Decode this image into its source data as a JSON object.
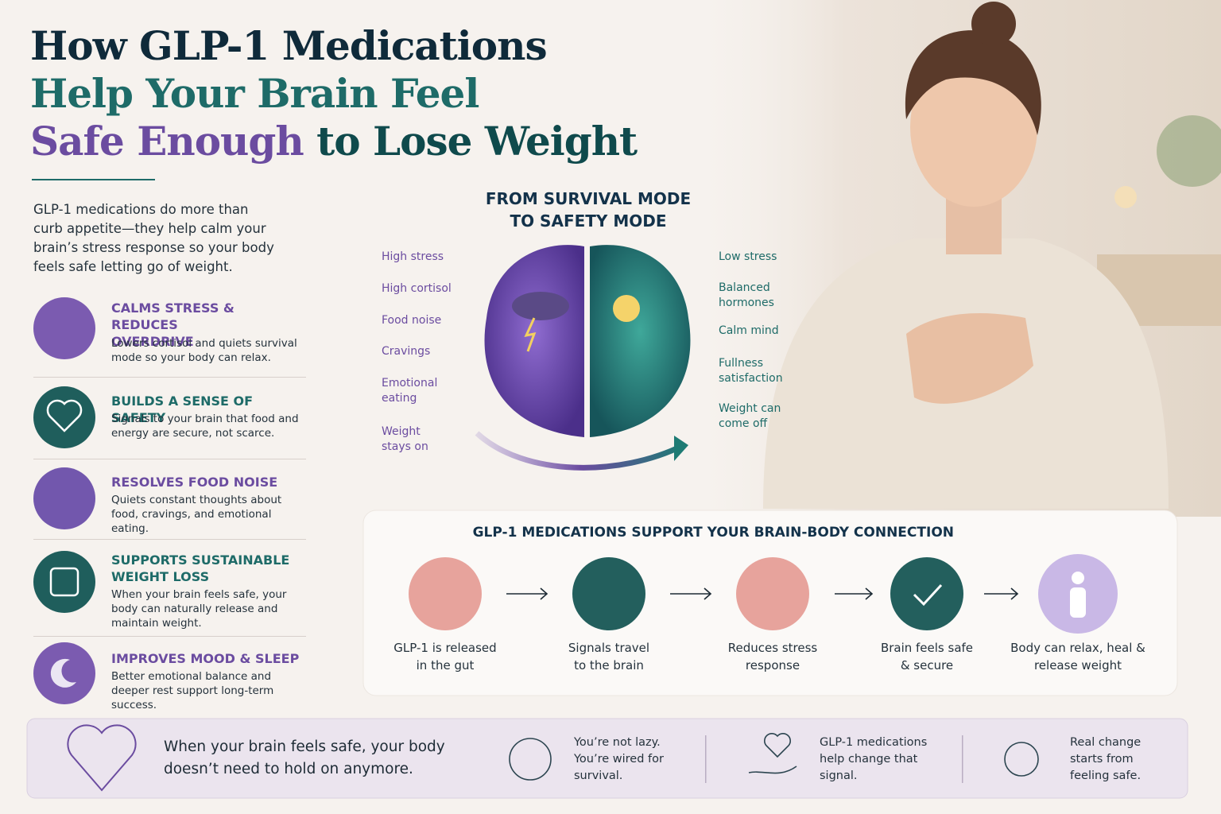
{
  "header": {
    "title_line1": "How GLP-1 Medications",
    "title_line2": "Help Your Brain Feel",
    "title_line3_highlight": "Safe Enough",
    "title_line3_rest": "to Lose Weight",
    "intro": "GLP-1 medications do more than curb appetite—they help calm your brain’s stress response so your body feels safe letting go of weight."
  },
  "benefits": [
    {
      "title": "CALMS STRESS & REDUCES OVERDRIVE",
      "text": "Lowers cortisol and quiets survival mode so your body can relax."
    },
    {
      "title": "BUILDS A SENSE OF SAFETY",
      "text": "Signals to your brain that food and energy are secure, not scarce."
    },
    {
      "title": "RESOLVES FOOD NOISE",
      "text": "Quiets constant thoughts about food, cravings, and emotional eating."
    },
    {
      "title": "SUPPORTS SUSTAINABLE WEIGHT LOSS",
      "text": "When your brain feels safe, your body can naturally release and maintain weight."
    },
    {
      "title": "IMPROVES MOOD & SLEEP",
      "text": "Better emotional balance and deeper rest support long-term success."
    }
  ],
  "brain": {
    "heading": "FROM SURVIVAL MODE TO SAFETY MODE",
    "survival_labels": [
      "High stress",
      "High cortisol",
      "Food noise",
      "Cravings",
      "Emotional eating",
      "Weight stays on"
    ],
    "safety_labels": [
      "Low stress",
      "Balanced hormones",
      "Calm mind",
      "Fullness satisfaction",
      "Weight can come off"
    ]
  },
  "process": {
    "heading": "GLP-1 MEDICATIONS SUPPORT YOUR BRAIN-BODY CONNECTION",
    "steps": [
      "GLP-1 is released in the gut",
      "Signals travel to the brain",
      "Reduces stress response",
      "Brain feels safe & secure",
      "Body can relax, heal & release weight"
    ]
  },
  "footer": {
    "quote": "When your brain feels safe, your body doesn’t need to hold on anymore.",
    "notes": [
      "You’re not lazy. You’re wired for survival.",
      "GLP-1 medications help change that signal.",
      "Real change starts from feeling safe."
    ]
  }
}
